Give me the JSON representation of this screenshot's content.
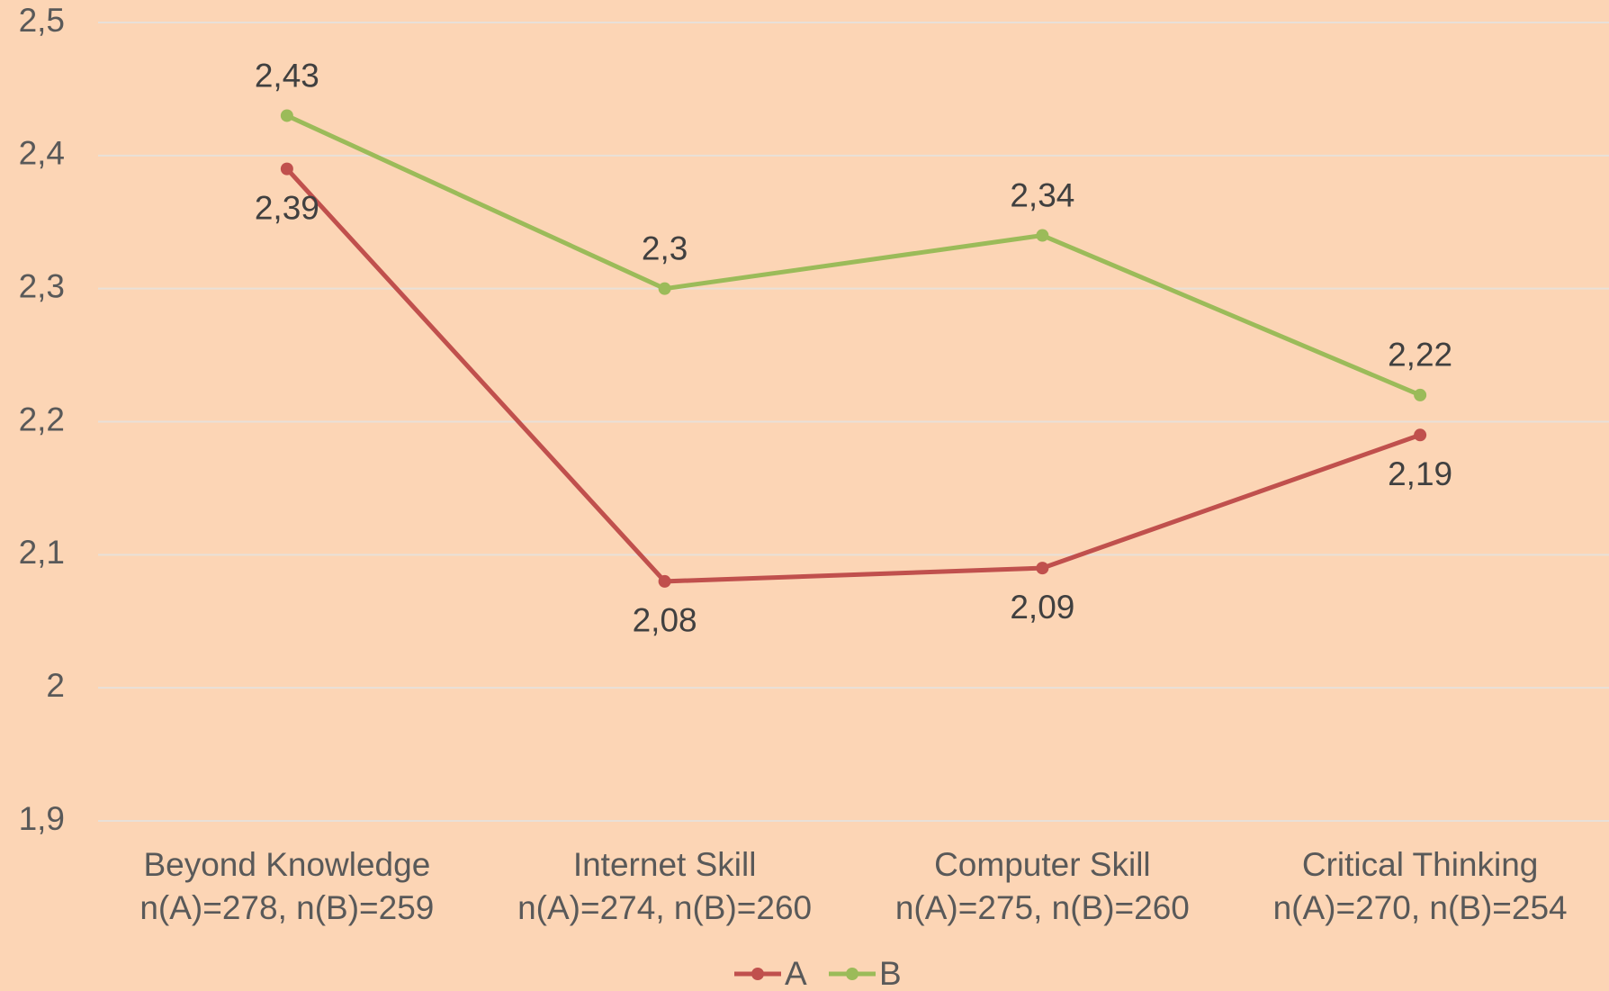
{
  "chart_data": {
    "type": "line",
    "categories": [
      [
        "Beyond Knowledge",
        "n(A)=278, n(B)=259"
      ],
      [
        "Internet Skill",
        "n(A)=274, n(B)=260"
      ],
      [
        "Computer Skill",
        "n(A)=275, n(B)=260"
      ],
      [
        "Critical Thinking",
        "n(A)=270, n(B)=254"
      ]
    ],
    "series": [
      {
        "name": "A",
        "color": "#c0504d",
        "values": [
          2.39,
          2.08,
          2.09,
          2.19
        ],
        "value_labels": [
          "2,39",
          "2,08",
          "2,09",
          "2,19"
        ],
        "label_position": "below"
      },
      {
        "name": "B",
        "color": "#9bbb59",
        "values": [
          2.43,
          2.3,
          2.34,
          2.22
        ],
        "value_labels": [
          "2,43",
          "2,3",
          "2,34",
          "2,22"
        ],
        "label_position": "above"
      }
    ],
    "ylim": [
      1.9,
      2.5
    ],
    "yticks": [
      {
        "value": 1.9,
        "label": "1,9"
      },
      2,
      {
        "value": 2.1,
        "label": "2,1"
      },
      {
        "value": 2.2,
        "label": "2,2"
      },
      {
        "value": 2.3,
        "label": "2,3"
      },
      {
        "value": 2.4,
        "label": "2,4"
      },
      {
        "value": 2.5,
        "label": "2,5"
      }
    ],
    "grid": true,
    "legend": "bottom"
  }
}
